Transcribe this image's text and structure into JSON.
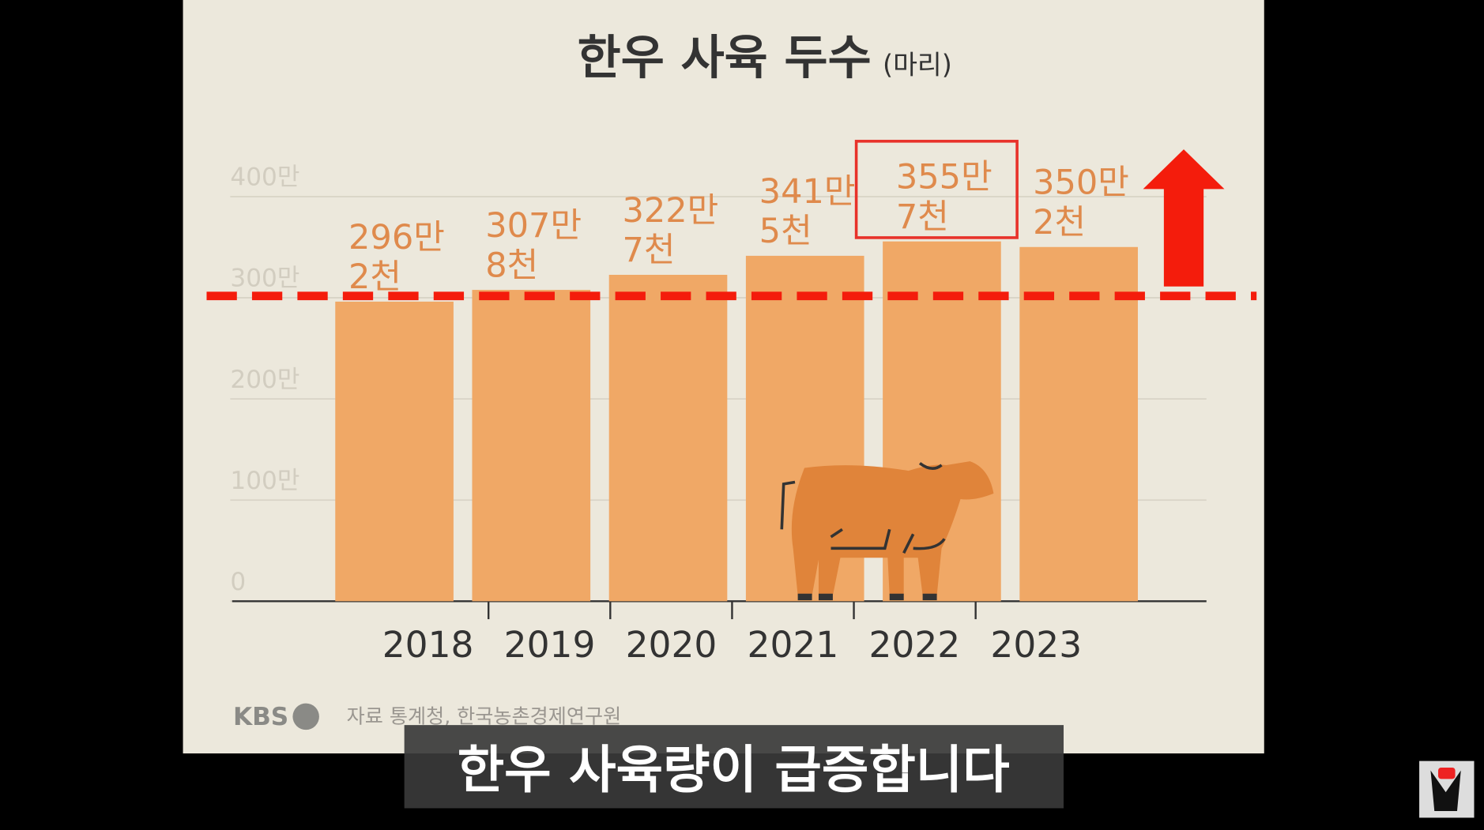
{
  "chart_data": {
    "type": "bar",
    "title": "한우 사육 두수",
    "unit_label": "(마리)",
    "categories": [
      "2018",
      "2019",
      "2020",
      "2021",
      "2022",
      "2023"
    ],
    "values": [
      296.2,
      307.8,
      322.7,
      341.5,
      355.7,
      350.2
    ],
    "value_labels": [
      [
        "296만",
        "2천"
      ],
      [
        "307만",
        "8천"
      ],
      [
        "322만",
        "7천"
      ],
      [
        "341만",
        "5천"
      ],
      [
        "355만",
        "7천"
      ],
      [
        "350만",
        "2천"
      ]
    ],
    "color": "#f0a866",
    "label_color": "#df8a4c",
    "ylim": [
      0,
      400
    ],
    "yticks": [
      {
        "value": 0,
        "label": "0"
      },
      {
        "value": 100,
        "label": "100만"
      },
      {
        "value": 200,
        "label": "200만"
      },
      {
        "value": 300,
        "label": "300만"
      },
      {
        "value": 400,
        "label": "400만"
      }
    ],
    "grid": true,
    "highlight_index": 4,
    "logo": "KBS",
    "source": "자료 통계청, 한국농촌경제연구원",
    "caption": "한우 사육량이 급증합니다"
  }
}
